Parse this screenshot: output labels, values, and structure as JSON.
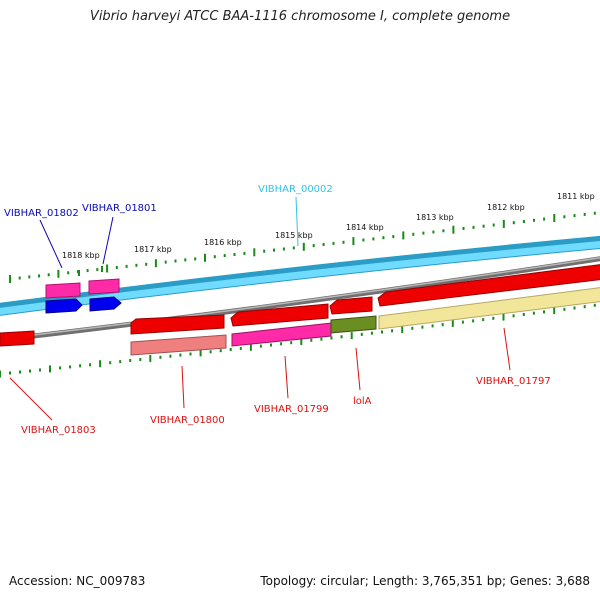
{
  "title": "Vibrio harveyi ATCC BAA-1116 chromosome I, complete genome",
  "footer": {
    "accession_label": "Accession:",
    "accession": "NC_009783",
    "topology_label": "Topology:",
    "topology": "circular",
    "length_label": "Length:",
    "length": "3,765,351 bp",
    "genes_label": "Genes:",
    "genes": "3,688"
  },
  "scale_labels": [
    "1818 kbp",
    "1817 kbp",
    "1816 kbp",
    "1815 kbp",
    "1814 kbp",
    "1813 kbp",
    "1812 kbp",
    "1811 kbp"
  ],
  "genes": [
    {
      "name": "VIBHAR_01802",
      "color": "#0a0ab4"
    },
    {
      "name": "VIBHAR_01801",
      "color": "#0a0ab4"
    },
    {
      "name": "VIBHAR_00002",
      "color": "#33c3e6"
    },
    {
      "name": "VIBHAR_01803",
      "color": "#dd1111"
    },
    {
      "name": "VIBHAR_01800",
      "color": "#dd1111"
    },
    {
      "name": "VIBHAR_01799",
      "color": "#dd1111"
    },
    {
      "name": "lolA",
      "color": "#dd1111"
    },
    {
      "name": "VIBHAR_01797",
      "color": "#dd1111"
    }
  ],
  "colors": {
    "forward_cds": "#0000ee",
    "forward_gene": "#ff2aa8",
    "reverse_cds": "#ee0000",
    "reverse_gene_a": "#f08080",
    "reverse_gene_b": "#ff2aa8",
    "reverse_gene_c": "#6b8e23",
    "reverse_gene_d": "#f2e69a",
    "rna_band": "#33c3e6",
    "backbone": "#808080",
    "ticks": "#1a8a1a"
  }
}
